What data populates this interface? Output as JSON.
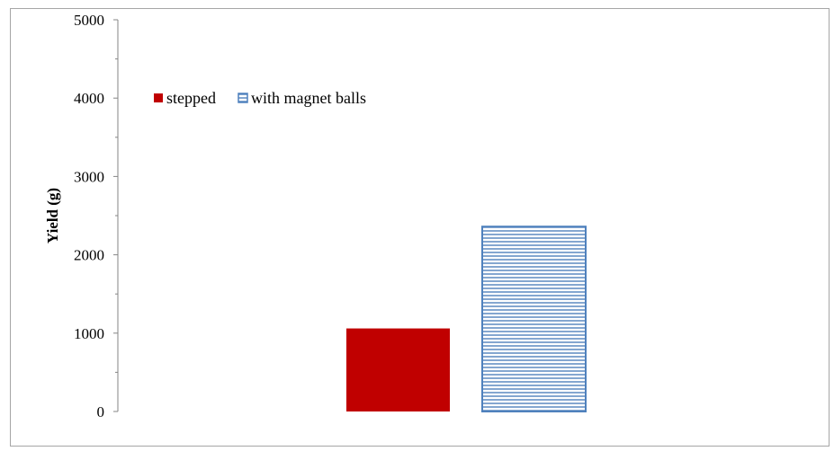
{
  "chart_data": {
    "type": "bar",
    "categories": [
      ""
    ],
    "series": [
      {
        "name": "stepped",
        "values": [
          1060
        ],
        "color": "#c00000",
        "pattern": "solid"
      },
      {
        "name": "with magnet balls",
        "values": [
          2360
        ],
        "color": "#4f81bd",
        "pattern": "horizontal-lines"
      }
    ],
    "xlabel": "",
    "ylabel": "Yield (g)",
    "ylim": [
      0,
      5000
    ],
    "yticks": [
      "0",
      "1000",
      "2000",
      "3000",
      "4000",
      "5000"
    ],
    "grid": false,
    "legend_position": "top-left"
  }
}
